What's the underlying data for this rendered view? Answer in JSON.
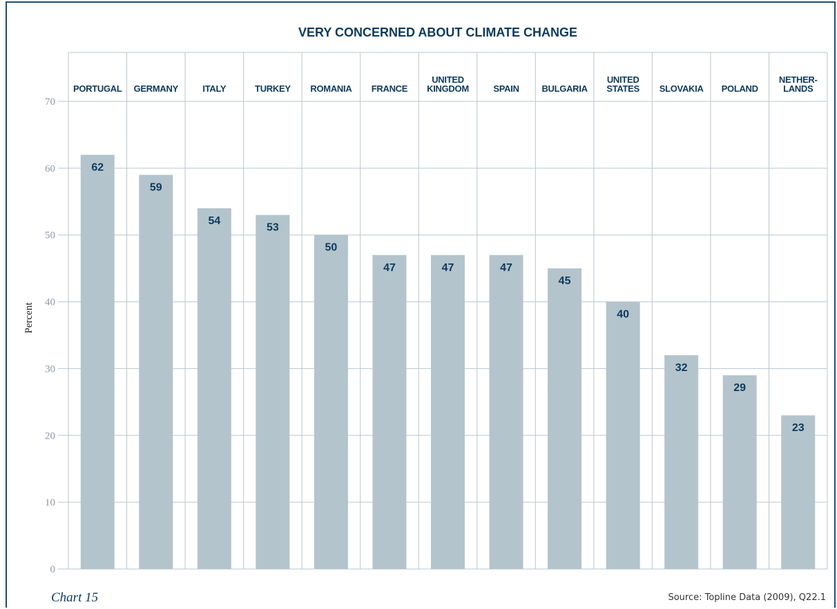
{
  "chart_data": {
    "type": "bar",
    "title": "VERY CONCERNED ABOUT CLIMATE CHANGE",
    "ylabel": "Percent",
    "xlabel": "",
    "ylim": [
      0,
      70
    ],
    "yticks": [
      0,
      10,
      20,
      30,
      40,
      50,
      60,
      70
    ],
    "categories": [
      [
        "PORTUGAL"
      ],
      [
        "GERMANY"
      ],
      [
        "ITALY"
      ],
      [
        "TURKEY"
      ],
      [
        "ROMANIA"
      ],
      [
        "FRANCE"
      ],
      [
        "UNITED",
        "KINGDOM"
      ],
      [
        "SPAIN"
      ],
      [
        "BULGARIA"
      ],
      [
        "UNITED",
        "STATES"
      ],
      [
        "SLOVAKIA"
      ],
      [
        "POLAND"
      ],
      [
        "NETHER-",
        "LANDS"
      ]
    ],
    "values": [
      62,
      59,
      54,
      53,
      50,
      47,
      47,
      47,
      45,
      40,
      32,
      29,
      23
    ],
    "bar_color": "#b4c4cc",
    "grid_color": "#b9c6cf",
    "label_color": "#0d3a5c",
    "grid": true
  },
  "caption": "Chart 15",
  "source": "Source: Topline Data (2009), Q22.1"
}
